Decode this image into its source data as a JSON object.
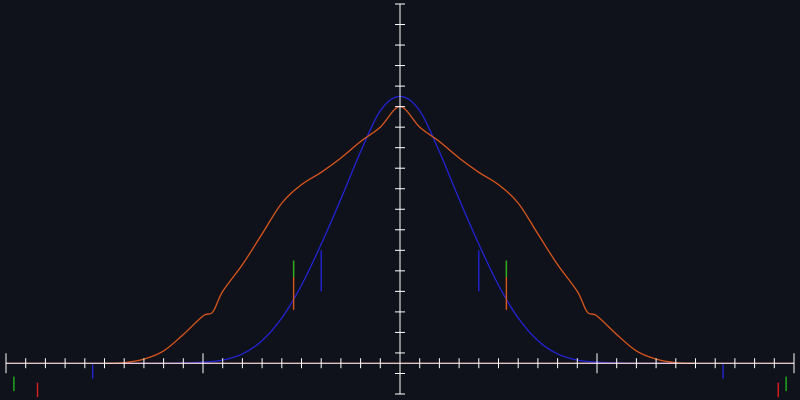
{
  "chart_data": {
    "type": "line",
    "title": "",
    "xlabel": "",
    "ylabel": "",
    "xlim": [
      -1.0,
      1.0
    ],
    "ylim": [
      -0.15,
      1.75
    ],
    "grid": false,
    "tick_labels_shown": false,
    "x_tick_step": 0.05,
    "y_tick_step": 0.1,
    "axis_color": "#ffffff",
    "background": "#0f121a",
    "series": [
      {
        "color": "#2323d4",
        "x": [
          -0.7,
          -0.6,
          -0.5,
          -0.45,
          -0.4,
          -0.35,
          -0.3,
          -0.25,
          -0.2,
          -0.15,
          -0.1,
          -0.05,
          0.0,
          0.05,
          0.1,
          0.15,
          0.2,
          0.25,
          0.3,
          0.35,
          0.4,
          0.45,
          0.5,
          0.6,
          0.7
        ],
        "y": [
          0.0,
          0.0,
          0.005,
          0.015,
          0.045,
          0.11,
          0.22,
          0.38,
          0.58,
          0.8,
          1.03,
          1.23,
          1.3,
          1.23,
          1.03,
          0.8,
          0.58,
          0.38,
          0.22,
          0.11,
          0.045,
          0.015,
          0.005,
          0.0,
          0.0
        ]
      },
      {
        "color": "#d9561c",
        "x": [
          -0.75,
          -0.7,
          -0.65,
          -0.6,
          -0.55,
          -0.5,
          -0.475,
          -0.45,
          -0.4,
          -0.35,
          -0.3,
          -0.25,
          -0.2,
          -0.15,
          -0.1,
          -0.05,
          0.0,
          0.05,
          0.1,
          0.15,
          0.2,
          0.25,
          0.3,
          0.35,
          0.4,
          0.45,
          0.475,
          0.5,
          0.55,
          0.6,
          0.65,
          0.7,
          0.75
        ],
        "y": [
          0.0,
          0.003,
          0.02,
          0.06,
          0.14,
          0.23,
          0.25,
          0.35,
          0.48,
          0.63,
          0.78,
          0.87,
          0.93,
          1.0,
          1.08,
          1.15,
          1.25,
          1.15,
          1.08,
          1.0,
          0.93,
          0.87,
          0.78,
          0.63,
          0.48,
          0.35,
          0.25,
          0.23,
          0.14,
          0.06,
          0.02,
          0.003,
          0.0
        ]
      },
      {
        "color": "#e02020",
        "x": [
          -1.0,
          1.0
        ],
        "y": [
          0.0,
          0.0
        ]
      }
    ],
    "markers": [
      {
        "x": -0.2,
        "y1": 0.35,
        "y2": 0.55,
        "color": "#2323d4"
      },
      {
        "x": 0.2,
        "y1": 0.35,
        "y2": 0.55,
        "color": "#2323d4"
      },
      {
        "x": -0.27,
        "y1": 0.26,
        "y2": 0.5,
        "color": "#d9561c"
      },
      {
        "x": 0.27,
        "y1": 0.26,
        "y2": 0.5,
        "color": "#d9561c"
      },
      {
        "x": -0.27,
        "y1": 0.42,
        "y2": 0.5,
        "color": "#1fb21f"
      },
      {
        "x": 0.27,
        "y1": 0.42,
        "y2": 0.5,
        "color": "#1fb21f"
      },
      {
        "x": -0.78,
        "y1": -0.075,
        "y2": -0.005,
        "color": "#2323d4"
      },
      {
        "x": 0.82,
        "y1": -0.075,
        "y2": -0.005,
        "color": "#2323d4"
      },
      {
        "x": -0.98,
        "y1": -0.135,
        "y2": -0.065,
        "color": "#1fb21f"
      },
      {
        "x": 0.98,
        "y1": -0.135,
        "y2": -0.065,
        "color": "#1fb21f"
      },
      {
        "x": -0.92,
        "y1": -0.165,
        "y2": -0.095,
        "color": "#e02020"
      },
      {
        "x": 0.96,
        "y1": -0.165,
        "y2": -0.095,
        "color": "#e02020"
      }
    ]
  }
}
